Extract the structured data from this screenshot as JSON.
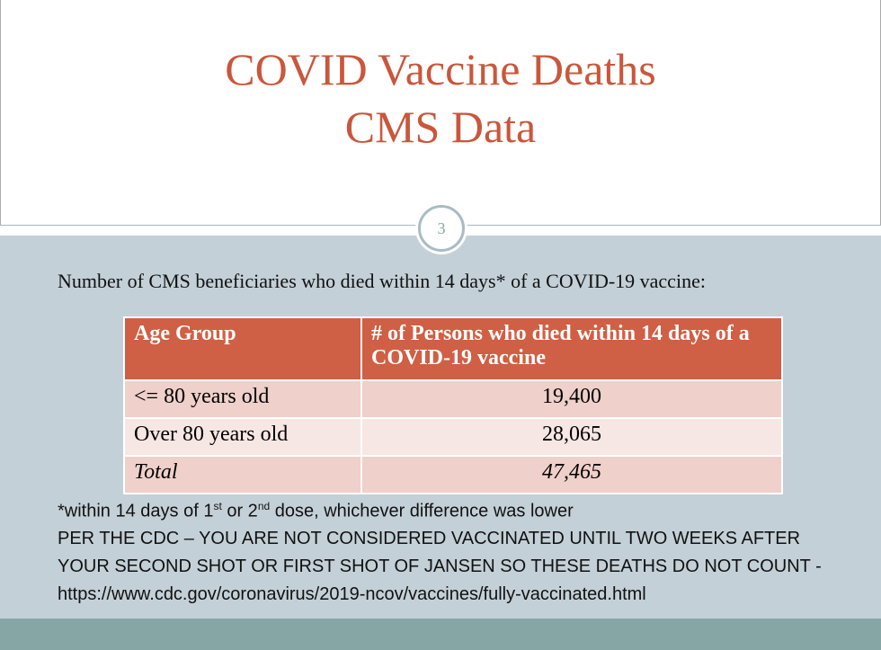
{
  "slide": {
    "title": [
      "COVID Vaccine Deaths",
      "CMS Data"
    ],
    "number": "3",
    "intro": "Number of CMS beneficiaries who died within 14 days* of a COVID-19 vaccine:",
    "table": {
      "header": [
        "Age Group",
        "# of Persons who died within 14 days of a COVID-19 vaccine"
      ],
      "rows": [
        [
          "<= 80 years old",
          "19,400"
        ],
        [
          "Over 80 years old",
          "28,065"
        ],
        [
          "Total",
          "47,465"
        ]
      ]
    },
    "footnote": [
      "*within 14 days of 1",
      "st",
      " or 2",
      "nd",
      " dose, whichever difference was lower"
    ],
    "notes": [
      "PER THE CDC – YOU ARE NOT CONSIDERED VACCINATED UNTIL TWO WEEKS AFTER",
      "YOUR SECOND SHOT OR FIRST SHOT OF JANSEN SO THESE DEATHS DO NOT COUNT -",
      "https://www.cdc.gov/coronavirus/2019-ncov/vaccines/fully-vaccinated.html"
    ]
  }
}
